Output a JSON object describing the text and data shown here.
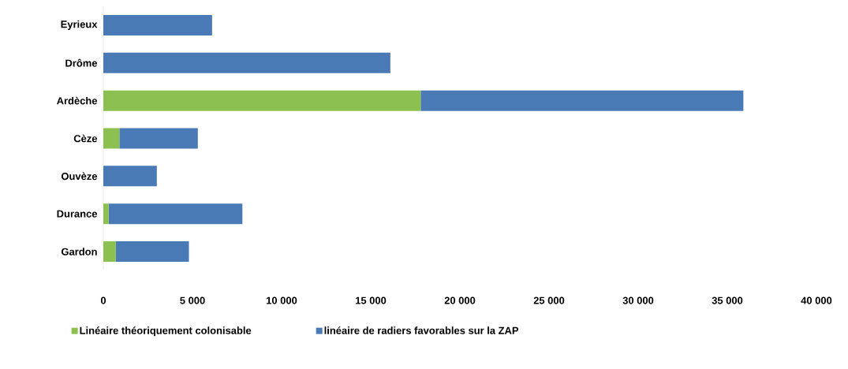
{
  "chart_data": {
    "type": "bar",
    "orientation": "horizontal",
    "stacked": true,
    "categories": [
      "Eyrieux",
      "Drôme",
      "Ardèche",
      "Cèze",
      "Ouvèze",
      "Durance",
      "Gardon"
    ],
    "series": [
      {
        "name": "Linéaire théoriquement colonisable",
        "color": "#8cc152",
        "values": [
          0,
          0,
          17800,
          900,
          0,
          300,
          700
        ]
      },
      {
        "name": "linéaire de radiers favorables sur la ZAP",
        "color": "#4a7ab5",
        "values": [
          6100,
          16100,
          18100,
          4400,
          3000,
          7500,
          4100
        ]
      }
    ],
    "xlim": [
      0,
      40000
    ],
    "xticks": [
      0,
      {
        "value": 5000,
        "label": "5 000"
      },
      {
        "value": 10000,
        "label": "10 000"
      },
      {
        "value": 15000,
        "label": "15 000"
      },
      {
        "value": 20000,
        "label": "20 000"
      },
      {
        "value": 25000,
        "label": "25 000"
      },
      {
        "value": 30000,
        "label": "30 000"
      },
      {
        "value": 35000,
        "label": "35 000"
      },
      {
        "value": 40000,
        "label": "40 000"
      }
    ],
    "legend": "bottom",
    "grid": false
  }
}
